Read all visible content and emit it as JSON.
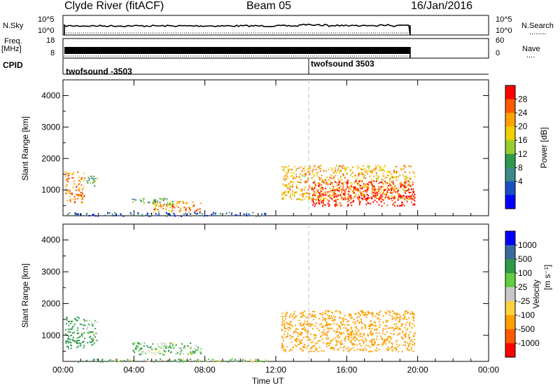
{
  "header": {
    "station": "Clyde River (fitACF)",
    "beam": "Beam 05",
    "date": "16/Jan/2016"
  },
  "strip_panels": {
    "nsky": {
      "label": "N.Sky",
      "ticks": [
        "10^5",
        "10^0"
      ],
      "right_ticks": [
        "10^5",
        "10^0"
      ],
      "right_label": "N.Search",
      "right_dots": "........"
    },
    "freq": {
      "label_line1": "Freq.",
      "label_line2": "[MHz]",
      "ticks": [
        "18",
        "8"
      ],
      "right_ticks": [
        "60",
        "0"
      ],
      "right_label": "Nave",
      "right_dots": "...."
    },
    "cpid": {
      "label": "CPID",
      "segments": [
        "twofsound -3503",
        "twofsound 3503"
      ]
    }
  },
  "chart_data": [
    {
      "type": "heatmap",
      "title": "",
      "xlabel": "",
      "ylabel": "Slant Range [km]",
      "x_hours": [
        0,
        4,
        8,
        12,
        16,
        20,
        24
      ],
      "xlim": [
        0,
        24
      ],
      "ylim": [
        180,
        4500
      ],
      "yticks": [
        "4000",
        "3000",
        "2000",
        "1000"
      ],
      "colorbar": {
        "label": "Power [dB]",
        "ticks": [
          "28",
          "24",
          "20",
          "16",
          "12",
          "8",
          "4"
        ],
        "range": [
          0,
          32
        ]
      },
      "regions": [
        {
          "t0": 0.1,
          "t1": 1.2,
          "r0": 600,
          "r1": 1600,
          "value": 24
        },
        {
          "t0": 1.3,
          "t1": 1.9,
          "r0": 1100,
          "r1": 1500,
          "value": 12
        },
        {
          "t0": 3.8,
          "t1": 6.2,
          "r0": 550,
          "r1": 750,
          "value": 12
        },
        {
          "t0": 5.0,
          "t1": 7.8,
          "r0": 300,
          "r1": 650,
          "value": 24
        },
        {
          "t0": 0.2,
          "t1": 11.5,
          "r0": 180,
          "r1": 300,
          "value": 6
        },
        {
          "t0": 12.3,
          "t1": 19.8,
          "r0": 700,
          "r1": 1800,
          "value": 22
        },
        {
          "t0": 14.0,
          "t1": 19.8,
          "r0": 500,
          "r1": 1300,
          "value": 30
        }
      ]
    },
    {
      "type": "heatmap",
      "title": "",
      "xlabel": "Time UT",
      "ylabel": "Slant Range [km]",
      "x_hours": [
        0,
        4,
        8,
        12,
        16,
        20,
        24
      ],
      "xtick_labels": [
        "00:00",
        "04:00",
        "08:00",
        "12:00",
        "16:00",
        "20:00",
        "00:00"
      ],
      "xlim": [
        0,
        24
      ],
      "ylim": [
        180,
        4500
      ],
      "yticks": [
        "4000",
        "3000",
        "2000",
        "1000"
      ],
      "colorbar": {
        "label_main": "Velocity",
        "label_unit": "[m s⁻¹]",
        "ticks": [
          "1000",
          "500",
          "100",
          "25",
          "-25",
          "-100",
          "-500",
          "-1000"
        ]
      },
      "regions": [
        {
          "t0": 0.1,
          "t1": 1.2,
          "r0": 600,
          "r1": 1600,
          "value": 300
        },
        {
          "t0": 1.3,
          "t1": 1.9,
          "r0": 700,
          "r1": 1500,
          "value": 100
        },
        {
          "t0": 3.8,
          "t1": 7.8,
          "r0": 400,
          "r1": 800,
          "value": 100
        },
        {
          "t0": 0.2,
          "t1": 11.5,
          "r0": 180,
          "r1": 280,
          "value": 60
        },
        {
          "t0": 12.3,
          "t1": 19.8,
          "r0": 500,
          "r1": 1800,
          "value": -300
        }
      ]
    }
  ],
  "colors": {
    "power_scale": [
      "#0000ff",
      "#1a4fc0",
      "#3b8a8a",
      "#2f9a4a",
      "#9acd32",
      "#f0d000",
      "#ffa000",
      "#ff5a00",
      "#ff0000"
    ],
    "velocity_scale": [
      "#ff0000",
      "#ff5a00",
      "#ffa000",
      "#ffd040",
      "#c8c8c8",
      "#60d040",
      "#2f9a4a",
      "#3b6aa0",
      "#0000ff"
    ]
  }
}
